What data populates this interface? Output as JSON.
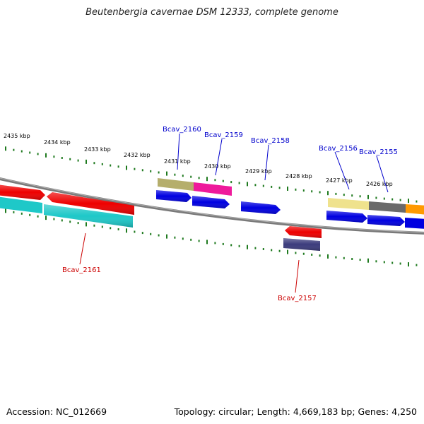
{
  "title": "Beutenbergia cavernae DSM 12333, complete genome",
  "footer": {
    "accession": "Accession: NC_012669",
    "topology": "Topology: circular; Length: 4,669,183 bp; Genes: 4,250"
  },
  "colors": {
    "backbone": "#808080",
    "tick": "#1f7a1f",
    "label_top": "#0000cc",
    "label_bottom": "#cc0000"
  },
  "kbp_labels": [
    {
      "id": "2435",
      "text": "2435 kbp"
    },
    {
      "id": "2434",
      "text": "2434 kbp"
    },
    {
      "id": "2433",
      "text": "2433 kbp"
    },
    {
      "id": "2432",
      "text": "2432 kbp"
    },
    {
      "id": "2431",
      "text": "2431 kbp"
    },
    {
      "id": "2430",
      "text": "2430 kbp"
    },
    {
      "id": "2429",
      "text": "2429 kbp"
    },
    {
      "id": "2428",
      "text": "2428 kbp"
    },
    {
      "id": "2427",
      "text": "2427 kbp"
    },
    {
      "id": "2426",
      "text": "2426 kbp"
    }
  ],
  "gene_labels": [
    {
      "id": "Bcav_2160",
      "text": "Bcav_2160"
    },
    {
      "id": "Bcav_2159",
      "text": "Bcav_2159"
    },
    {
      "id": "Bcav_2158",
      "text": "Bcav_2158"
    },
    {
      "id": "Bcav_2156",
      "text": "Bcav_2156"
    },
    {
      "id": "Bcav_2155",
      "text": "Bcav_2155"
    },
    {
      "id": "Bcav_2161",
      "text": "Bcav_2161"
    },
    {
      "id": "Bcav_2157",
      "text": "Bcav_2157"
    }
  ]
}
